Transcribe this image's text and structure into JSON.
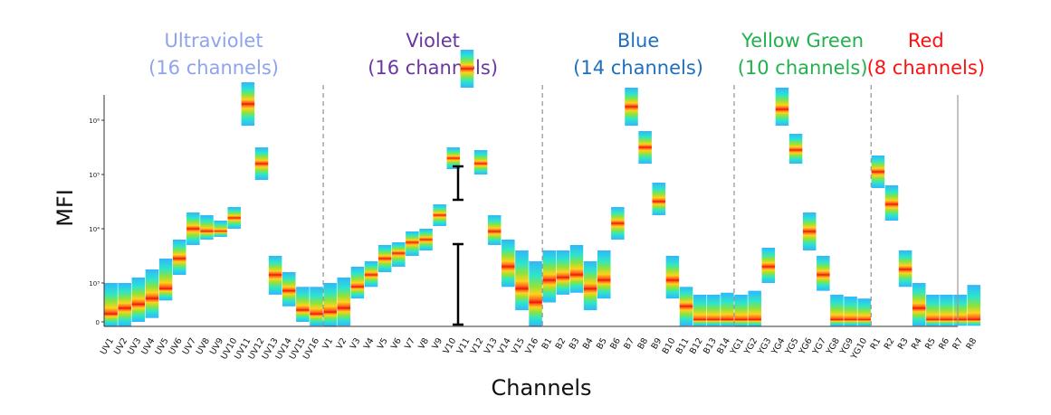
{
  "chart_data": {
    "type": "heatmap",
    "title": "",
    "xlabel": "Channels",
    "ylabel": "MFI",
    "y_scale": "log",
    "y_ticks": [
      "0",
      "10³",
      "10⁴",
      "10⁵",
      "10⁶"
    ],
    "groups": [
      {
        "name": "Ultraviolet",
        "count_label": "(16 channels)",
        "color": "#8ea4ec",
        "channels": [
          "UV1",
          "UV2",
          "UV3",
          "UV4",
          "UV5",
          "UV6",
          "UV7",
          "UV8",
          "UV9",
          "UV10",
          "UV11",
          "UV12",
          "UV13",
          "UV14",
          "UV15",
          "UV16"
        ],
        "distributions": [
          [
            -0.2,
            1.0,
            0.2
          ],
          [
            -0.2,
            1.0,
            0.35
          ],
          [
            0.0,
            1.1,
            0.45
          ],
          [
            0.1,
            1.25,
            0.6
          ],
          [
            0.55,
            1.45,
            0.85
          ],
          [
            1.15,
            1.8,
            1.45
          ],
          [
            1.7,
            2.3,
            2.0
          ],
          [
            1.8,
            2.25,
            1.95
          ],
          [
            1.85,
            2.15,
            1.95
          ],
          [
            2.0,
            2.4,
            2.2
          ],
          [
            3.9,
            4.7,
            4.3
          ],
          [
            2.9,
            3.5,
            3.2
          ],
          [
            0.7,
            1.5,
            1.15
          ],
          [
            0.4,
            1.2,
            0.8
          ],
          [
            0.0,
            0.9,
            0.3
          ],
          [
            -0.1,
            0.9,
            0.2
          ]
        ]
      },
      {
        "name": "Violet",
        "count_label": "(16 channels)",
        "color": "#6b36a0",
        "channels": [
          "V1",
          "V2",
          "V3",
          "V4",
          "V5",
          "V6",
          "V7",
          "V8",
          "V9",
          "V10",
          "V11",
          "V12",
          "V13",
          "V14",
          "V15",
          "V16"
        ],
        "distributions": [
          [
            -0.2,
            1.0,
            0.25
          ],
          [
            -0.1,
            1.1,
            0.35
          ],
          [
            0.6,
            1.3,
            0.9
          ],
          [
            0.9,
            1.4,
            1.15
          ],
          [
            1.2,
            1.7,
            1.45
          ],
          [
            1.3,
            1.75,
            1.55
          ],
          [
            1.5,
            1.95,
            1.75
          ],
          [
            1.6,
            2.0,
            1.8
          ],
          [
            2.05,
            2.45,
            2.25
          ],
          [
            3.1,
            3.5,
            3.3
          ],
          [
            4.6,
            5.3,
            4.95
          ],
          [
            3.0,
            3.45,
            3.2
          ],
          [
            1.7,
            2.25,
            1.95
          ],
          [
            0.9,
            1.8,
            1.3
          ],
          [
            0.3,
            1.6,
            0.85
          ],
          [
            -0.2,
            1.4,
            0.5
          ]
        ]
      },
      {
        "name": "Blue",
        "count_label": "(14 channels)",
        "color": "#1f6fc0",
        "channels": [
          "B1",
          "B2",
          "B3",
          "B4",
          "B5",
          "B6",
          "B7",
          "B8",
          "B9",
          "B10",
          "B11",
          "B12",
          "B13",
          "B14"
        ],
        "distributions": [
          [
            0.5,
            1.6,
            1.05
          ],
          [
            0.7,
            1.6,
            1.1
          ],
          [
            0.75,
            1.7,
            1.15
          ],
          [
            0.3,
            1.4,
            0.85
          ],
          [
            0.6,
            1.6,
            1.05
          ],
          [
            1.8,
            2.4,
            2.1
          ],
          [
            3.9,
            4.6,
            4.25
          ],
          [
            3.2,
            3.8,
            3.5
          ],
          [
            2.25,
            2.85,
            2.5
          ],
          [
            0.6,
            1.5,
            1.05
          ],
          [
            -0.1,
            0.9,
            0.4
          ],
          [
            -0.1,
            0.7,
            0.05
          ],
          [
            -0.1,
            0.7,
            0.05
          ],
          [
            -0.1,
            0.75,
            0.05
          ]
        ]
      },
      {
        "name": "Yellow Green",
        "count_label": "(10 channels)",
        "color": "#22b14c",
        "channels": [
          "YG1",
          "YG2",
          "YG3",
          "YG4",
          "YG5",
          "YG6",
          "YG7",
          "YG8",
          "YG9",
          "YG10"
        ],
        "distributions": [
          [
            -0.2,
            0.7,
            0.05
          ],
          [
            -0.2,
            0.8,
            0.05
          ],
          [
            1.0,
            1.65,
            1.3
          ],
          [
            3.9,
            4.6,
            4.2
          ],
          [
            3.2,
            3.75,
            3.45
          ],
          [
            1.6,
            2.3,
            1.95
          ],
          [
            0.8,
            1.5,
            1.15
          ],
          [
            -0.1,
            0.7,
            0.05
          ],
          [
            -0.1,
            0.65,
            0.05
          ],
          [
            -0.1,
            0.6,
            0.05
          ]
        ]
      },
      {
        "name": "Red",
        "count_label": "(8 channels)",
        "color": "#ff1010",
        "channels": [
          "R1",
          "R2",
          "R3",
          "R4",
          "R5",
          "R6",
          "R7",
          "R8"
        ],
        "distributions": [
          [
            2.75,
            3.35,
            3.05
          ],
          [
            2.15,
            2.8,
            2.45
          ],
          [
            0.9,
            1.6,
            1.25
          ],
          [
            -0.1,
            1.0,
            0.35
          ],
          [
            -0.1,
            0.7,
            0.05
          ],
          [
            -0.1,
            0.7,
            0.05
          ],
          [
            -0.1,
            0.7,
            0.05
          ],
          [
            -0.1,
            0.95,
            0.05
          ]
        ]
      }
    ]
  }
}
